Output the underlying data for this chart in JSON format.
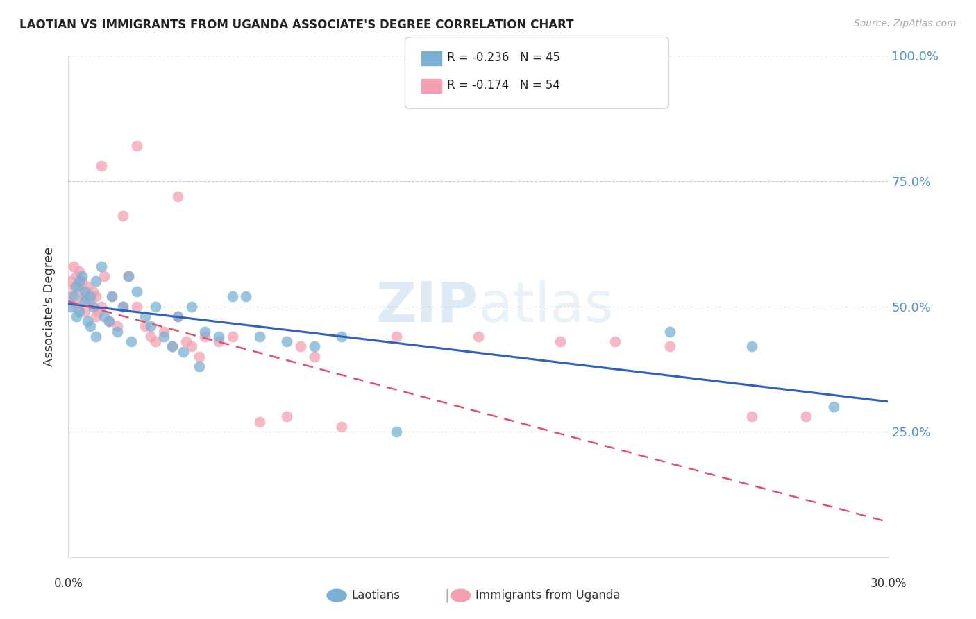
{
  "title": "LAOTIAN VS IMMIGRANTS FROM UGANDA ASSOCIATE'S DEGREE CORRELATION CHART",
  "source": "Source: ZipAtlas.com",
  "ylabel": "Associate's Degree",
  "xmin": 0.0,
  "xmax": 0.3,
  "ymin": 0.0,
  "ymax": 1.0,
  "yticks": [
    0.25,
    0.5,
    0.75,
    1.0
  ],
  "ytick_labels": [
    "25.0%",
    "50.0%",
    "75.0%",
    "100.0%"
  ],
  "blue_color": "#7ab0d4",
  "pink_color": "#f4a0b0",
  "trend_blue": "#3060c0",
  "trend_pink": "#e05070",
  "watermark_zip": "ZIP",
  "watermark_atlas": "atlas",
  "blue_x": [
    0.001,
    0.002,
    0.003,
    0.003,
    0.004,
    0.004,
    0.005,
    0.006,
    0.006,
    0.007,
    0.008,
    0.008,
    0.009,
    0.01,
    0.01,
    0.012,
    0.013,
    0.015,
    0.016,
    0.018,
    0.02,
    0.022,
    0.023,
    0.025,
    0.028,
    0.03,
    0.032,
    0.035,
    0.038,
    0.04,
    0.042,
    0.045,
    0.048,
    0.05,
    0.055,
    0.06,
    0.065,
    0.07,
    0.08,
    0.09,
    0.1,
    0.12,
    0.22,
    0.25,
    0.28
  ],
  "blue_y": [
    0.5,
    0.52,
    0.54,
    0.48,
    0.55,
    0.49,
    0.56,
    0.51,
    0.53,
    0.47,
    0.52,
    0.46,
    0.5,
    0.44,
    0.55,
    0.58,
    0.48,
    0.47,
    0.52,
    0.45,
    0.5,
    0.56,
    0.43,
    0.53,
    0.48,
    0.46,
    0.5,
    0.44,
    0.42,
    0.48,
    0.41,
    0.5,
    0.38,
    0.45,
    0.44,
    0.52,
    0.52,
    0.44,
    0.43,
    0.42,
    0.44,
    0.25,
    0.45,
    0.42,
    0.3
  ],
  "pink_x": [
    0.001,
    0.001,
    0.002,
    0.002,
    0.003,
    0.003,
    0.004,
    0.004,
    0.005,
    0.005,
    0.006,
    0.006,
    0.007,
    0.008,
    0.009,
    0.01,
    0.01,
    0.011,
    0.012,
    0.013,
    0.015,
    0.016,
    0.018,
    0.02,
    0.022,
    0.025,
    0.028,
    0.03,
    0.032,
    0.035,
    0.038,
    0.04,
    0.043,
    0.045,
    0.048,
    0.05,
    0.055,
    0.06,
    0.07,
    0.08,
    0.085,
    0.09,
    0.1,
    0.12,
    0.15,
    0.18,
    0.2,
    0.22,
    0.25,
    0.27,
    0.02,
    0.04,
    0.012,
    0.025
  ],
  "pink_y": [
    0.55,
    0.52,
    0.58,
    0.54,
    0.56,
    0.5,
    0.57,
    0.53,
    0.55,
    0.51,
    0.52,
    0.49,
    0.54,
    0.51,
    0.53,
    0.48,
    0.52,
    0.49,
    0.5,
    0.56,
    0.47,
    0.52,
    0.46,
    0.5,
    0.56,
    0.5,
    0.46,
    0.44,
    0.43,
    0.45,
    0.42,
    0.48,
    0.43,
    0.42,
    0.4,
    0.44,
    0.43,
    0.44,
    0.27,
    0.28,
    0.42,
    0.4,
    0.26,
    0.44,
    0.44,
    0.43,
    0.43,
    0.42,
    0.28,
    0.28,
    0.68,
    0.72,
    0.78,
    0.82
  ],
  "blue_trend_x": [
    0.0,
    0.3
  ],
  "blue_trend_y": [
    0.505,
    0.31
  ],
  "pink_trend_x": [
    0.0,
    0.3
  ],
  "pink_trend_y": [
    0.51,
    0.07
  ]
}
